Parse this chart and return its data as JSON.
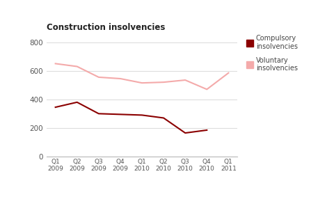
{
  "title": "Construction insolvencies",
  "x_labels": [
    "Q1\n2009",
    "Q2\n2009",
    "Q3\n2009",
    "Q4\n2009",
    "Q1\n2010",
    "Q2\n2010",
    "Q3\n2010",
    "Q4\n2010",
    "Q1\n2011"
  ],
  "compulsory": [
    345,
    380,
    300,
    295,
    290,
    270,
    165,
    185,
    null
  ],
  "voluntary": [
    650,
    630,
    555,
    545,
    515,
    520,
    535,
    470,
    585
  ],
  "compulsory_color": "#8B0000",
  "voluntary_color": "#F4AAAA",
  "ylim": [
    0,
    850
  ],
  "yticks": [
    0,
    200,
    400,
    600,
    800
  ],
  "legend_compulsory": "Compulsory\ninsolvencies",
  "legend_voluntary": "Voluntary\ninsolvencies",
  "bg_color": "#FFFFFF",
  "grid_color": "#DDDDDD"
}
